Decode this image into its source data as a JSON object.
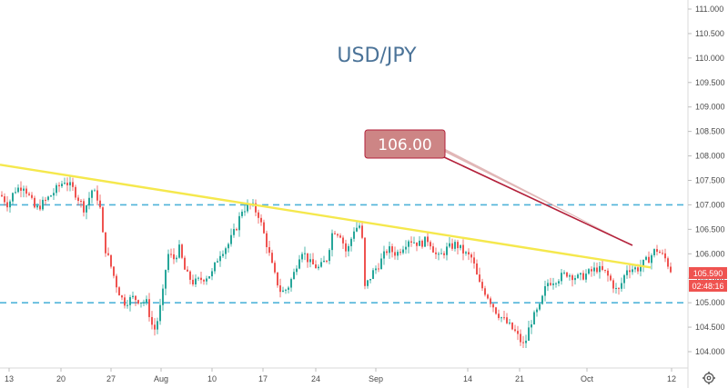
{
  "chart_data": {
    "type": "candlestick",
    "title": "USD/JPY",
    "ylim": [
      103.7,
      111.25
    ],
    "y_ticks": [
      "111.000",
      "110.500",
      "110.000",
      "109.500",
      "109.000",
      "108.500",
      "108.000",
      "107.500",
      "107.000",
      "106.500",
      "106.000",
      "105.500",
      "105.000",
      "104.500",
      "104.000"
    ],
    "x_ticks": [
      "13",
      "20",
      "27",
      "Aug",
      "10",
      "17",
      "24",
      "Sep",
      "14",
      "21",
      "Oct",
      "12"
    ],
    "horizontal_levels": [
      107.0,
      105.0
    ],
    "trendline": {
      "from": [
        0,
        107.82
      ],
      "to": [
        715,
        105.72
      ]
    },
    "callout": {
      "label": "106.00",
      "arrow_to": [
        695,
        106.2
      ]
    },
    "price_tag": {
      "label": "105.590",
      "value": 105.59
    },
    "countdown_tag": {
      "label": "02:48:16"
    },
    "colors": {
      "up": "#27a69a",
      "down": "#ef5350",
      "level": "#4fb3d9",
      "trend": "#f5e84d",
      "callout": "#c97b7b",
      "arrow": "#b3203a",
      "tag": "#ef5350"
    },
    "price_path": [
      [
        0,
        107.2
      ],
      [
        8,
        107.0
      ],
      [
        15,
        107.3
      ],
      [
        25,
        107.4
      ],
      [
        38,
        106.9
      ],
      [
        50,
        107.1
      ],
      [
        60,
        107.3
      ],
      [
        70,
        107.5
      ],
      [
        80,
        107.3
      ],
      [
        92,
        106.9
      ],
      [
        100,
        107.3
      ],
      [
        108,
        107.1
      ],
      [
        113,
        106.2
      ],
      [
        120,
        105.8
      ],
      [
        128,
        105.3
      ],
      [
        135,
        105.0
      ],
      [
        145,
        105.1
      ],
      [
        160,
        105.0
      ],
      [
        168,
        104.4
      ],
      [
        173,
        104.7
      ],
      [
        178,
        105.2
      ],
      [
        183,
        106.0
      ],
      [
        190,
        105.9
      ],
      [
        196,
        106.1
      ],
      [
        203,
        105.6
      ],
      [
        212,
        105.4
      ],
      [
        222,
        105.5
      ],
      [
        232,
        105.6
      ],
      [
        240,
        106.0
      ],
      [
        250,
        106.2
      ],
      [
        258,
        106.5
      ],
      [
        265,
        106.9
      ],
      [
        275,
        107.0
      ],
      [
        283,
        106.8
      ],
      [
        292,
        106.2
      ],
      [
        300,
        105.6
      ],
      [
        308,
        105.2
      ],
      [
        315,
        105.3
      ],
      [
        322,
        105.6
      ],
      [
        330,
        106.1
      ],
      [
        340,
        105.8
      ],
      [
        350,
        105.7
      ],
      [
        358,
        105.9
      ],
      [
        365,
        106.5
      ],
      [
        373,
        106.4
      ],
      [
        380,
        106.0
      ],
      [
        388,
        106.5
      ],
      [
        396,
        106.6
      ],
      [
        400,
        105.3
      ],
      [
        408,
        105.6
      ],
      [
        416,
        105.8
      ],
      [
        425,
        106.1
      ],
      [
        435,
        106.0
      ],
      [
        448,
        106.3
      ],
      [
        460,
        106.2
      ],
      [
        470,
        106.3
      ],
      [
        480,
        105.9
      ],
      [
        490,
        106.1
      ],
      [
        500,
        106.2
      ],
      [
        510,
        106.0
      ],
      [
        518,
        105.9
      ],
      [
        525,
        105.4
      ],
      [
        533,
        105.2
      ],
      [
        545,
        104.8
      ],
      [
        555,
        104.6
      ],
      [
        565,
        104.4
      ],
      [
        575,
        104.1
      ],
      [
        582,
        104.6
      ],
      [
        592,
        104.9
      ],
      [
        600,
        105.4
      ],
      [
        612,
        105.5
      ],
      [
        622,
        105.6
      ],
      [
        635,
        105.5
      ],
      [
        645,
        105.6
      ],
      [
        655,
        105.7
      ],
      [
        665,
        105.6
      ],
      [
        678,
        105.2
      ],
      [
        688,
        105.7
      ],
      [
        700,
        105.7
      ],
      [
        712,
        105.9
      ],
      [
        720,
        106.1
      ],
      [
        730,
        105.9
      ],
      [
        738,
        105.59
      ]
    ]
  }
}
